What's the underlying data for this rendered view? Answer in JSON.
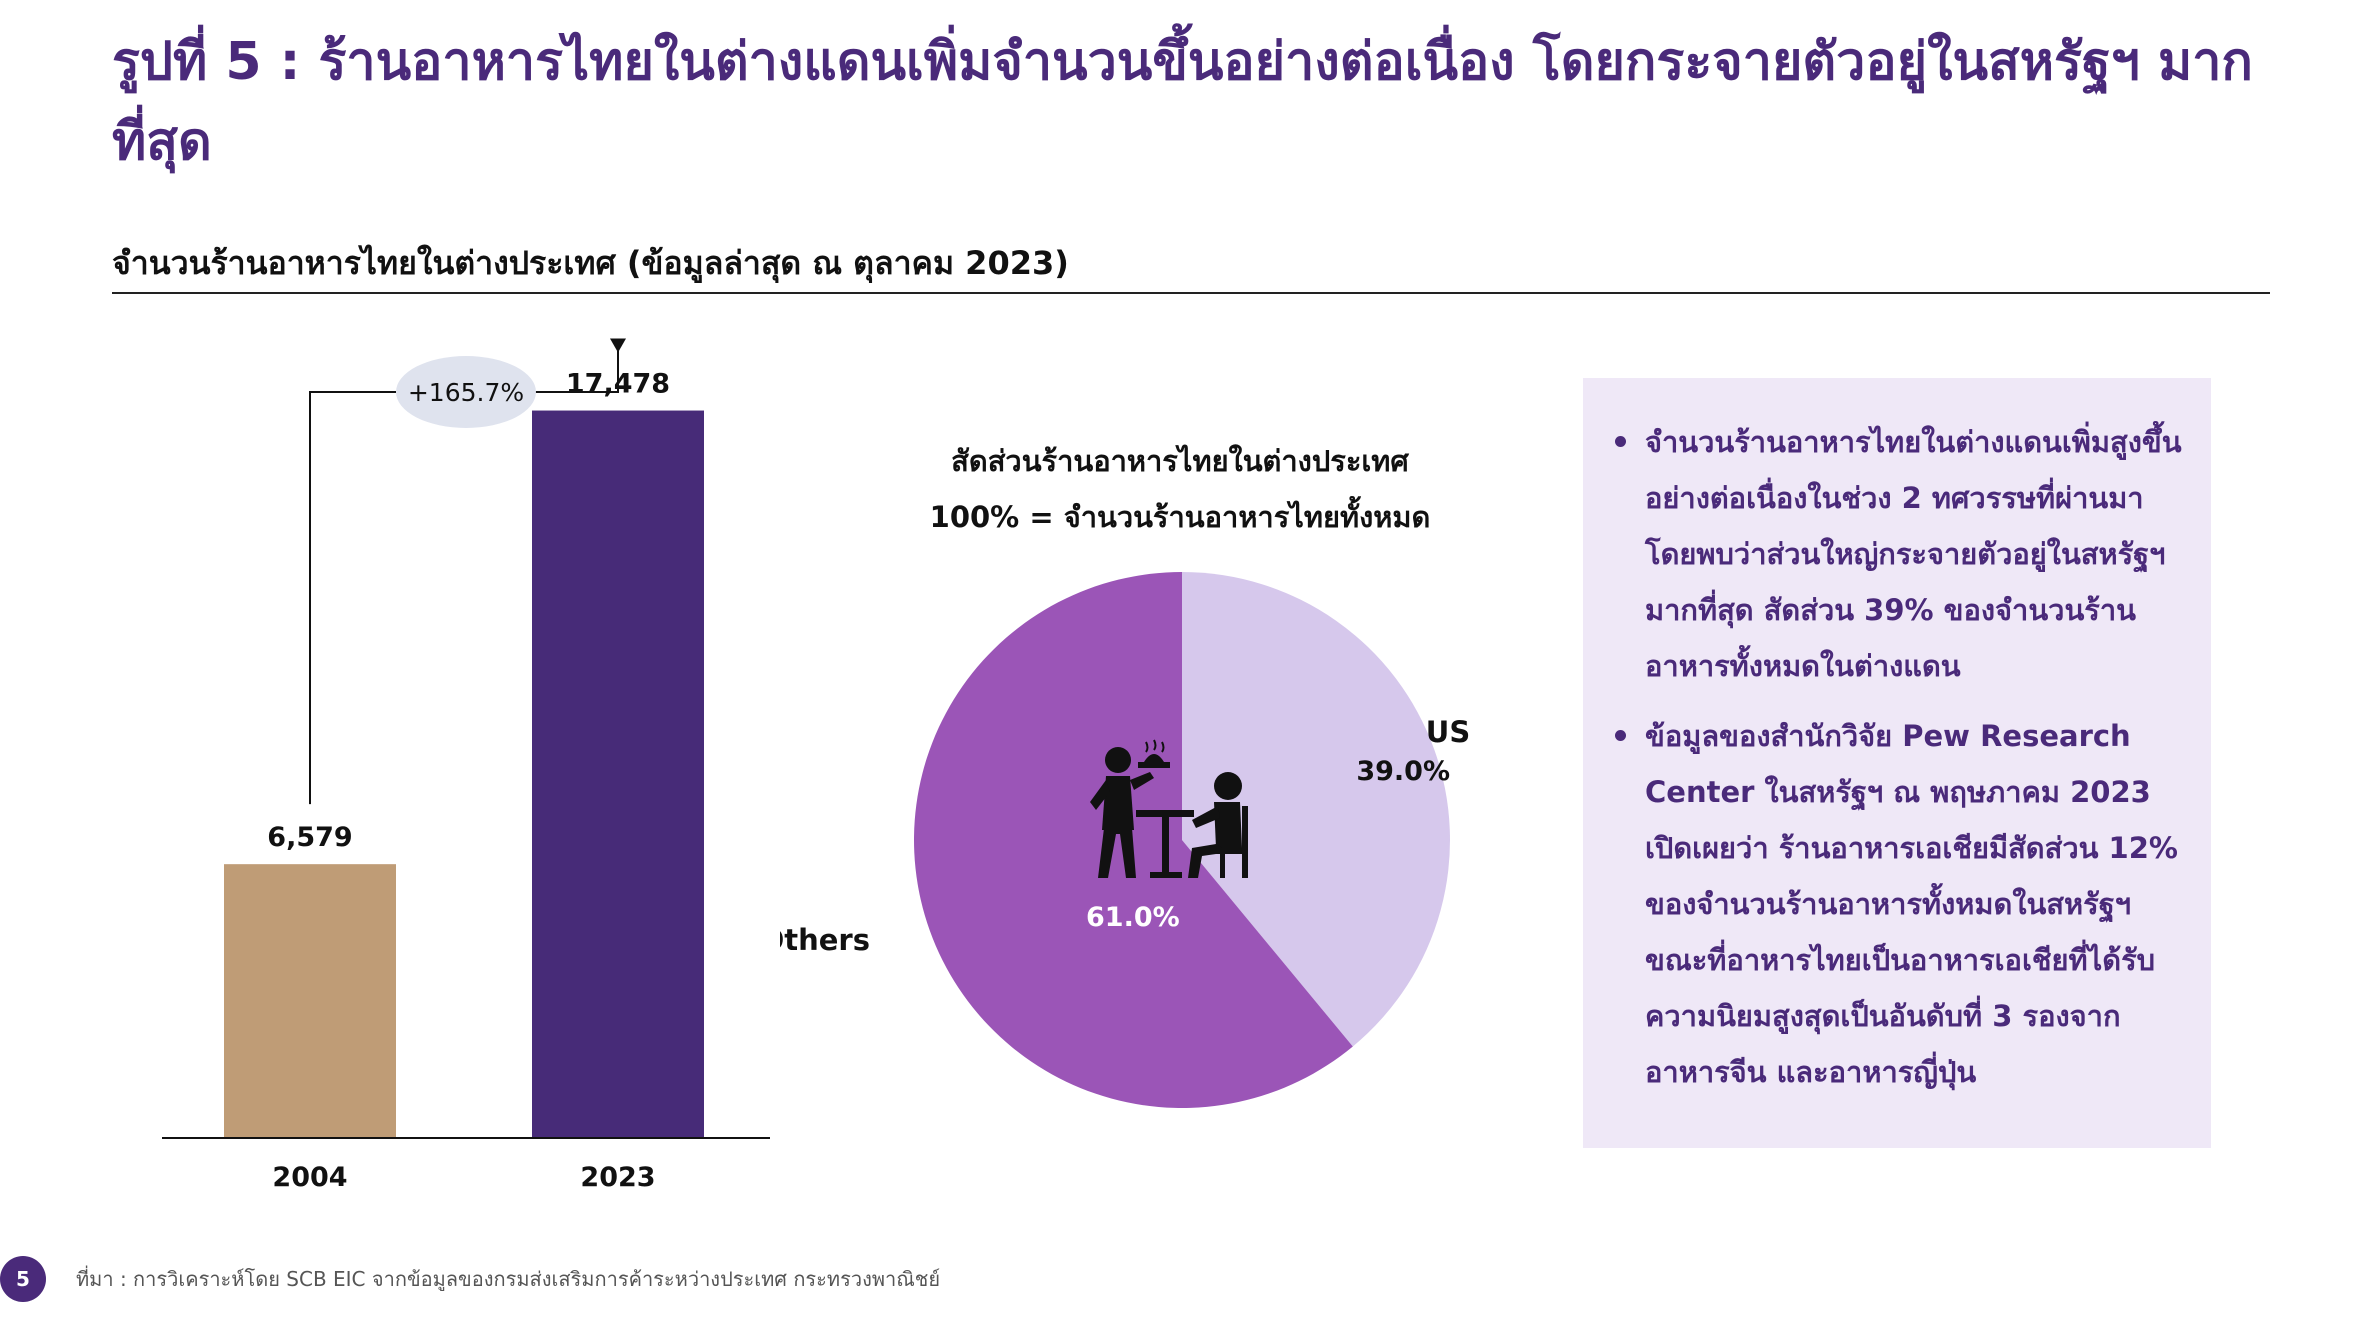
{
  "header": {
    "title": "รูปที่ 5 : ร้านอาหารไทยในต่างแดนเพิ่มจำนวนขึ้นอย่างต่อเนื่อง โดยกระจายตัวอยู่ในสหรัฐฯ มากที่สุด",
    "subtitle": "จำนวนร้านอาหารไทยในต่างประเทศ (ข้อมูลล่าสุด ณ ตุลาคม 2023)"
  },
  "pie_heading": {
    "line1": "สัดส่วนร้านอาหารไทยในต่างประเทศ",
    "line2": "100% = จำนวนร้านอาหารไทยทั้งหมด"
  },
  "chart_data": [
    {
      "type": "bar",
      "categories": [
        "2004",
        "2023"
      ],
      "values": [
        6579,
        17478
      ],
      "value_labels": [
        "6,579",
        "17,478"
      ],
      "colors": [
        "#bf9c76",
        "#472b78"
      ],
      "annotation": "+165.7%",
      "title": "",
      "xlabel": "",
      "ylabel": "",
      "ylim": [
        0,
        18500
      ]
    },
    {
      "type": "pie",
      "labels": [
        "US",
        "Others"
      ],
      "values": [
        39.0,
        61.0
      ],
      "value_labels": [
        "39.0%",
        "61.0%"
      ],
      "colors": [
        "#d6c8ec",
        "#9b55b7"
      ],
      "center_icon": "restaurant-waiter-diner-icon"
    }
  ],
  "info_box": {
    "bullets": [
      "จำนวนร้านอาหารไทยในต่างแดนเพิ่มสูงขึ้นอย่างต่อเนื่องในช่วง 2 ทศวรรษที่ผ่านมา โดยพบว่าส่วนใหญ่กระจายตัวอยู่ในสหรัฐฯ มากที่สุด สัดส่วน 39% ของจำนวนร้านอาหารทั้งหมดในต่างแดน",
      "ข้อมูลของสำนักวิจัย Pew Research Center ในสหรัฐฯ ณ พฤษภาคม 2023 เปิดเผยว่า ร้านอาหารเอเชียมีสัดส่วน 12% ของจำนวนร้านอาหารทั้งหมดในสหรัฐฯ ขณะที่อาหารไทยเป็นอาหารเอเชียที่ได้รับความนิยมสูงสุดเป็นอันดับที่ 3 รองจากอาหารจีน และอาหารญี่ปุ่น"
    ]
  },
  "footer": {
    "page_number": "5",
    "source": "ที่มา : การวิเคราะห์โดย SCB EIC จากข้อมูลของกรมส่งเสริมการค้าระหว่างประเทศ กระทรวงพาณิชย์"
  }
}
